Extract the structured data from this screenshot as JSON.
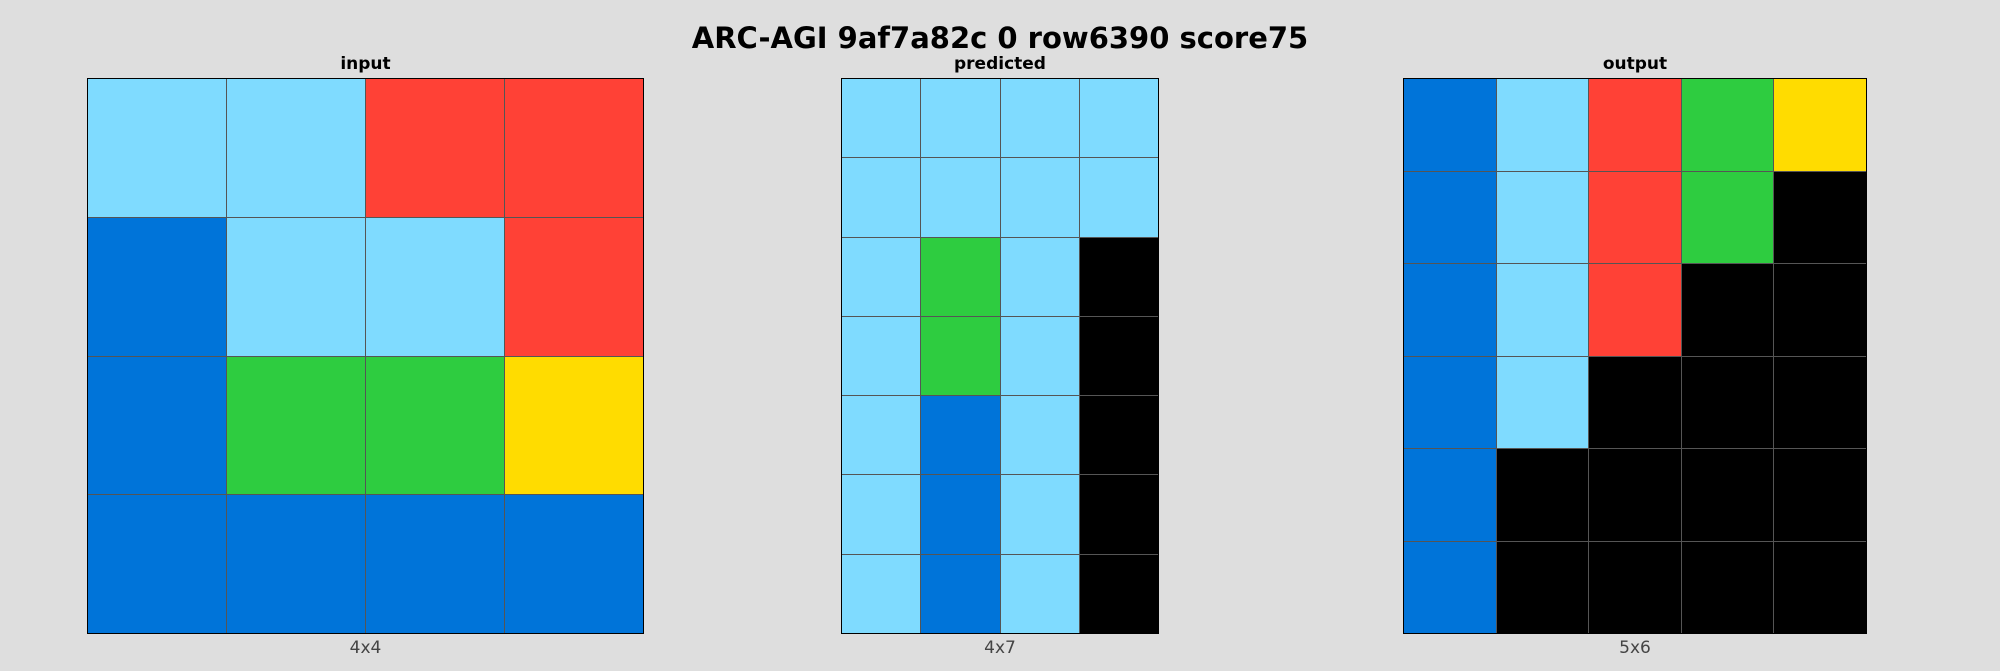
{
  "title": "ARC-AGI 9af7a82c 0 row6390 score75",
  "palette": {
    "1": "#0074d9",
    "8": "#7fdbff",
    "2": "#ff4136",
    "3": "#2ecc40",
    "4": "#ffdc00",
    "0": "#000000"
  },
  "panels": [
    {
      "title": "input",
      "caption": "4x4",
      "grid": [
        [
          8,
          8,
          2,
          2
        ],
        [
          1,
          8,
          8,
          2
        ],
        [
          1,
          3,
          3,
          4
        ],
        [
          1,
          1,
          1,
          1
        ]
      ]
    },
    {
      "title": "predicted",
      "caption": "4x7",
      "grid": [
        [
          8,
          8,
          8,
          8
        ],
        [
          8,
          8,
          8,
          8
        ],
        [
          8,
          3,
          8,
          0
        ],
        [
          8,
          3,
          8,
          0
        ],
        [
          8,
          1,
          8,
          0
        ],
        [
          8,
          1,
          8,
          0
        ],
        [
          8,
          1,
          8,
          0
        ]
      ]
    },
    {
      "title": "output",
      "caption": "5x6",
      "grid": [
        [
          1,
          8,
          2,
          3,
          4
        ],
        [
          1,
          8,
          2,
          3,
          0
        ],
        [
          1,
          8,
          2,
          0,
          0
        ],
        [
          1,
          8,
          0,
          0,
          0
        ],
        [
          1,
          0,
          0,
          0,
          0
        ],
        [
          1,
          0,
          0,
          0,
          0
        ]
      ]
    }
  ]
}
